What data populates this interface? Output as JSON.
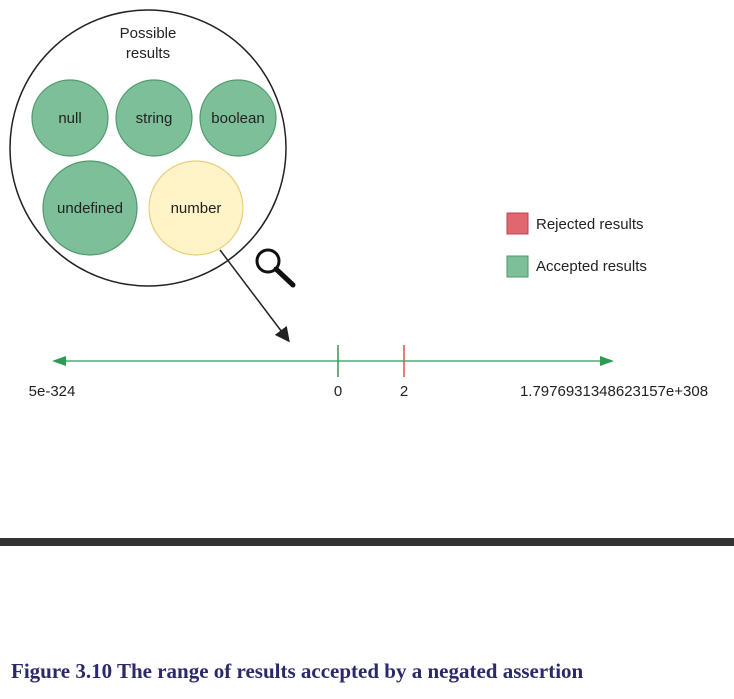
{
  "possible_results": {
    "title_line1": "Possible",
    "title_line2": "results",
    "types": [
      "null",
      "string",
      "boolean",
      "undefined",
      "number"
    ],
    "highlighted_type": "number"
  },
  "legend": {
    "rejected_label": "Rejected results",
    "accepted_label": "Accepted results"
  },
  "number_line": {
    "min_label": "5e-324",
    "max_label": "1.7976931348623157e+308",
    "accepted_mark": "0",
    "rejected_mark": "2"
  },
  "colors": {
    "accepted_fill": "#7dbf98",
    "accepted_stroke": "#4f9a6c",
    "rejected_fill": "#e06670",
    "rejected_stroke": "#c0434f",
    "highlight_fill": "#fff3c8",
    "highlight_stroke": "#e9cf7a",
    "line_green": "#2e9a54"
  },
  "icons": {
    "zoom": "magnifier-icon"
  },
  "caption": "Figure 3.10 The range of results accepted by a negated assertion"
}
